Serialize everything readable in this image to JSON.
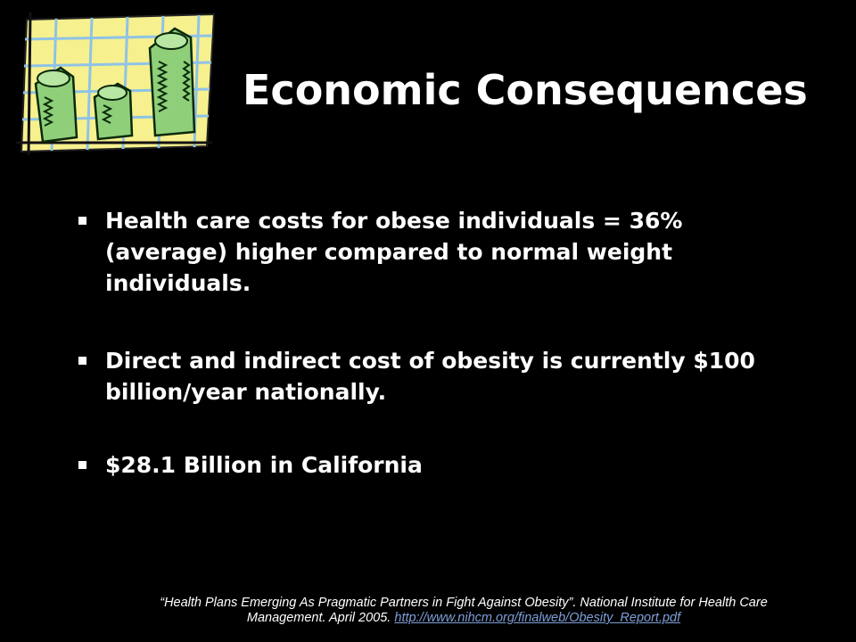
{
  "title": "Economic Consequences",
  "bullets": [
    "Health care costs for obese individuals = 36% (average) higher compared to normal weight individuals.",
    "Direct and indirect cost of obesity is currently $100 billion/year nationally.",
    "$28.1 Billion in California"
  ],
  "citation": {
    "text": "“Health Plans Emerging As Pragmatic Partners in Fight Against Obesity”. National Institute for Health Care Management. April 2005.",
    "link": "http://www.nihcm.org/finalweb/Obesity_Report.pdf"
  }
}
